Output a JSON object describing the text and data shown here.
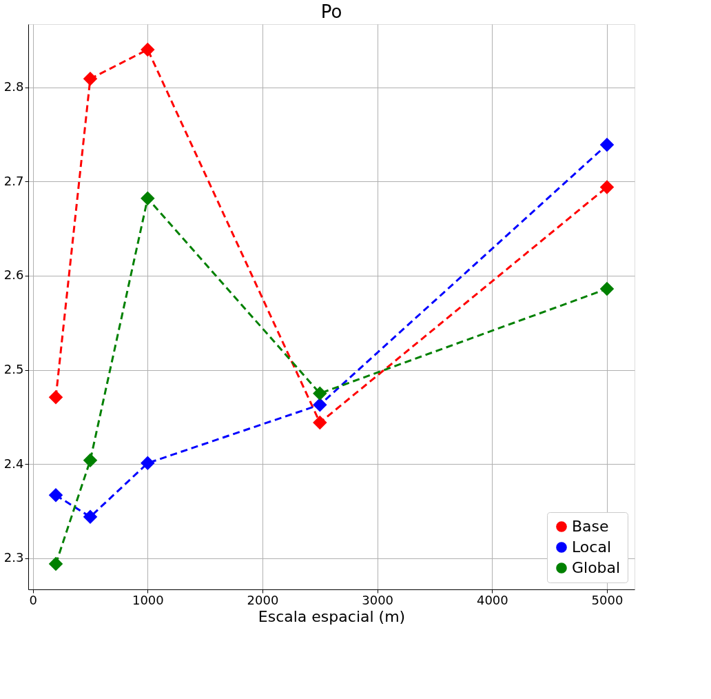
{
  "chart_data": {
    "type": "line",
    "title": "Po",
    "xlabel": "Escala espacial (m)",
    "x": [
      200,
      500,
      1000,
      2500,
      5000
    ],
    "series": [
      {
        "name": "Base",
        "color": "#ff0000",
        "values": [
          2.471,
          2.809,
          2.84,
          2.444,
          2.694
        ]
      },
      {
        "name": "Local",
        "color": "#0000ff",
        "values": [
          2.367,
          2.344,
          2.401,
          2.463,
          2.739
        ]
      },
      {
        "name": "Global",
        "color": "#008000",
        "values": [
          2.294,
          2.404,
          2.682,
          2.475,
          2.586
        ]
      }
    ],
    "xlim": [
      -40,
      5240
    ],
    "xticks": [
      0,
      1000,
      2000,
      3000,
      4000,
      5000
    ],
    "ylim": [
      2.267,
      2.867
    ],
    "yticks": [
      2.3,
      2.4,
      2.5,
      2.6,
      2.7,
      2.8
    ],
    "grid": true,
    "legend": "bottom right",
    "marker": "diamond",
    "line_style": "dashed"
  }
}
